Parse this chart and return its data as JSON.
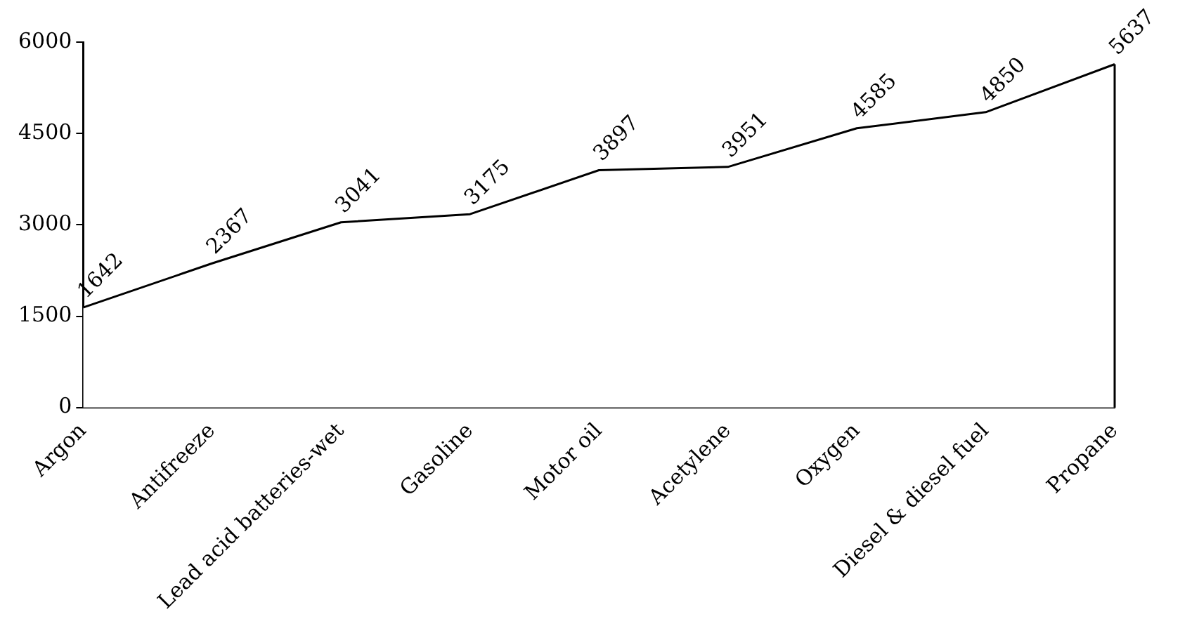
{
  "chart_data": {
    "type": "area",
    "categories": [
      "Argon",
      "Antifreeze",
      "Lead acid batteries-wet",
      "Gasoline",
      "Motor oil",
      "Acetylene",
      "Oxygen",
      "Diesel & diesel fuel",
      "Propane"
    ],
    "values": [
      1642,
      2367,
      3041,
      3175,
      3897,
      3951,
      4585,
      4850,
      5637
    ],
    "color": "#000000",
    "ylim": [
      0,
      6000
    ],
    "yticks": [
      0,
      1500,
      3000,
      4500,
      6000
    ],
    "grid": false,
    "legend": false,
    "data_labels": true,
    "marker": "none"
  }
}
